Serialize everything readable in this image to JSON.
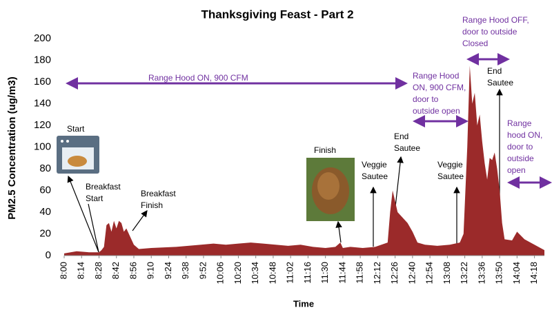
{
  "chart_data": {
    "type": "area",
    "title": "Thanksgiving Feast - Part 2",
    "y_label": "PM2.5 Concentration (ug/m3)",
    "x_label": "Time",
    "color": "#9b2a2a",
    "x": [
      0,
      10,
      20,
      28,
      30,
      32,
      34,
      36,
      38,
      40,
      42,
      44,
      46,
      48,
      50,
      52,
      54,
      56,
      60,
      70,
      90,
      110,
      120,
      130,
      140,
      150,
      160,
      170,
      180,
      190,
      200,
      210,
      218,
      222,
      224,
      230,
      240,
      250,
      255,
      260,
      262,
      264,
      266,
      268,
      272,
      276,
      280,
      284,
      290,
      300,
      310,
      318,
      321,
      324,
      326,
      328,
      330,
      332,
      334,
      336,
      338,
      340,
      342,
      344,
      346,
      348,
      350,
      352,
      354,
      360,
      364,
      370,
      378,
      386
    ],
    "values": [
      2,
      4,
      3,
      3,
      5,
      8,
      28,
      30,
      22,
      32,
      25,
      32,
      30,
      22,
      25,
      20,
      15,
      10,
      6,
      7,
      8,
      10,
      11,
      10,
      11,
      12,
      11,
      10,
      9,
      10,
      8,
      7,
      8,
      12,
      7,
      8,
      7,
      8,
      10,
      12,
      40,
      60,
      50,
      40,
      35,
      30,
      22,
      12,
      10,
      9,
      10,
      12,
      20,
      100,
      175,
      140,
      150,
      120,
      130,
      105,
      85,
      70,
      90,
      88,
      95,
      80,
      60,
      30,
      15,
      14,
      22,
      15,
      10,
      5
    ],
    "xlim": [
      0,
      386
    ],
    "ylim": [
      0,
      200
    ],
    "yticks": [
      0,
      20,
      40,
      60,
      80,
      100,
      120,
      140,
      160,
      180,
      200
    ],
    "xticks": [
      {
        "value": 0,
        "label": "8:00"
      },
      {
        "value": 14,
        "label": "8:14"
      },
      {
        "value": 28,
        "label": "8:28"
      },
      {
        "value": 42,
        "label": "8:42"
      },
      {
        "value": 56,
        "label": "8:56"
      },
      {
        "value": 70,
        "label": "9:10"
      },
      {
        "value": 84,
        "label": "9:24"
      },
      {
        "value": 98,
        "label": "9:38"
      },
      {
        "value": 112,
        "label": "9:52"
      },
      {
        "value": 126,
        "label": "10:06"
      },
      {
        "value": 140,
        "label": "10:20"
      },
      {
        "value": 154,
        "label": "10:34"
      },
      {
        "value": 168,
        "label": "10:48"
      },
      {
        "value": 182,
        "label": "11:02"
      },
      {
        "value": 196,
        "label": "11:16"
      },
      {
        "value": 210,
        "label": "11:30"
      },
      {
        "value": 224,
        "label": "11:44"
      },
      {
        "value": 238,
        "label": "11:58"
      },
      {
        "value": 252,
        "label": "12:12"
      },
      {
        "value": 266,
        "label": "12:26"
      },
      {
        "value": 280,
        "label": "12:40"
      },
      {
        "value": 294,
        "label": "12:54"
      },
      {
        "value": 308,
        "label": "13:08"
      },
      {
        "value": 322,
        "label": "13:22"
      },
      {
        "value": 336,
        "label": "13:36"
      },
      {
        "value": 350,
        "label": "13:50"
      },
      {
        "value": 364,
        "label": "14:04"
      },
      {
        "value": 378,
        "label": "14:18"
      }
    ],
    "annotations": [
      {
        "lines": [
          "Range Hood ON, 900 CFM"
        ]
      },
      {
        "lines": [
          "Start"
        ]
      },
      {
        "lines": [
          "Breakfast",
          "Start"
        ]
      },
      {
        "lines": [
          "Breakfast",
          "Finish"
        ]
      },
      {
        "lines": [
          "Finish"
        ]
      },
      {
        "lines": [
          "Veggie",
          "Sautee"
        ]
      },
      {
        "lines": [
          "End",
          "Sautee"
        ]
      },
      {
        "lines": [
          "Range Hood",
          "ON, 900 CFM,",
          "door to",
          "outside open"
        ]
      },
      {
        "lines": [
          "Veggie",
          "Sautee"
        ]
      },
      {
        "lines": [
          "Range Hood OFF,",
          "door to outside",
          "Closed"
        ]
      },
      {
        "lines": [
          "End",
          "Sautee"
        ]
      },
      {
        "lines": [
          "Range",
          "hood ON,",
          "door to",
          "outside",
          "open"
        ]
      }
    ]
  }
}
